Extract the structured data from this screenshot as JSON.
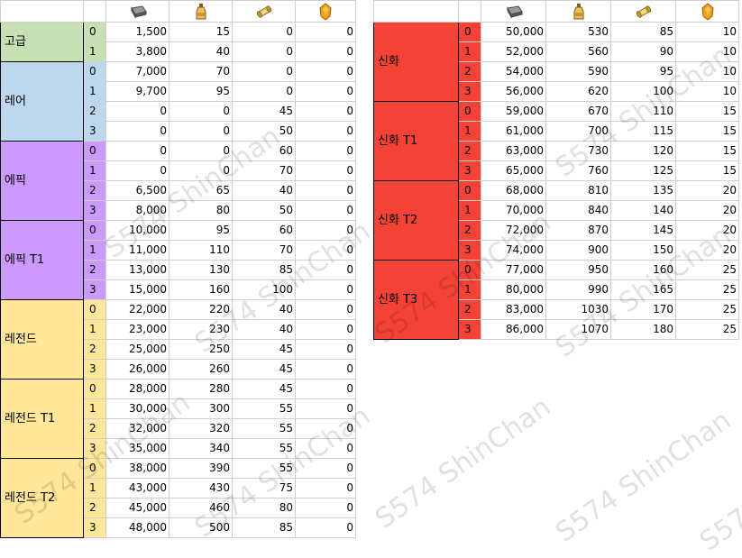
{
  "header": {
    "icons": [
      "iron-ingot-icon",
      "oil-bottle-icon",
      "scroll-icon",
      "amber-gem-icon"
    ]
  },
  "colors": {
    "고급": "#c6e0b4",
    "레어": "#bdd7ee",
    "에픽": "#cc99ff",
    "레전드": "#ffe699",
    "신화": "#f44336"
  },
  "left_table": [
    {
      "grade": "고급",
      "color": "#c6e0b4",
      "rows": [
        [
          "0",
          "1,500",
          "15",
          "0",
          "0"
        ],
        [
          "1",
          "3,800",
          "40",
          "0",
          "0"
        ]
      ]
    },
    {
      "grade": "레어",
      "color": "#bdd7ee",
      "rows": [
        [
          "0",
          "7,000",
          "70",
          "0",
          "0"
        ],
        [
          "1",
          "9,700",
          "95",
          "0",
          "0"
        ],
        [
          "2",
          "0",
          "0",
          "45",
          "0"
        ],
        [
          "3",
          "0",
          "0",
          "50",
          "0"
        ]
      ]
    },
    {
      "grade": "에픽",
      "color": "#cc99ff",
      "rows": [
        [
          "0",
          "0",
          "0",
          "60",
          "0"
        ],
        [
          "1",
          "0",
          "0",
          "70",
          "0"
        ],
        [
          "2",
          "6,500",
          "65",
          "40",
          "0"
        ],
        [
          "3",
          "8,000",
          "80",
          "50",
          "0"
        ]
      ]
    },
    {
      "grade": "에픽 T1",
      "color": "#cc99ff",
      "rows": [
        [
          "0",
          "10,000",
          "95",
          "60",
          "0"
        ],
        [
          "1",
          "11,000",
          "110",
          "70",
          "0"
        ],
        [
          "2",
          "13,000",
          "130",
          "85",
          "0"
        ],
        [
          "3",
          "15,000",
          "160",
          "100",
          "0"
        ]
      ]
    },
    {
      "grade": "레전드",
      "color": "#ffe699",
      "rows": [
        [
          "0",
          "22,000",
          "220",
          "40",
          "0"
        ],
        [
          "1",
          "23,000",
          "230",
          "40",
          "0"
        ],
        [
          "2",
          "25,000",
          "250",
          "45",
          "0"
        ],
        [
          "3",
          "26,000",
          "260",
          "45",
          "0"
        ]
      ]
    },
    {
      "grade": "레전드 T1",
      "color": "#ffe699",
      "rows": [
        [
          "0",
          "28,000",
          "280",
          "45",
          "0"
        ],
        [
          "1",
          "30,000",
          "300",
          "55",
          "0"
        ],
        [
          "2",
          "32,000",
          "320",
          "55",
          "0"
        ],
        [
          "3",
          "35,000",
          "340",
          "55",
          "0"
        ]
      ]
    },
    {
      "grade": "레전드 T2",
      "color": "#ffe699",
      "rows": [
        [
          "0",
          "38,000",
          "390",
          "55",
          "0"
        ],
        [
          "1",
          "43,000",
          "430",
          "75",
          "0"
        ],
        [
          "2",
          "45,000",
          "460",
          "80",
          "0"
        ],
        [
          "3",
          "48,000",
          "500",
          "85",
          "0"
        ]
      ]
    }
  ],
  "right_table": [
    {
      "grade": "신화",
      "color": "#f44336",
      "rows": [
        [
          "0",
          "50,000",
          "530",
          "85",
          "10"
        ],
        [
          "1",
          "52,000",
          "560",
          "90",
          "10"
        ],
        [
          "2",
          "54,000",
          "590",
          "95",
          "10"
        ],
        [
          "3",
          "56,000",
          "620",
          "100",
          "10"
        ]
      ]
    },
    {
      "grade": "신화 T1",
      "color": "#f44336",
      "rows": [
        [
          "0",
          "59,000",
          "670",
          "110",
          "15"
        ],
        [
          "1",
          "61,000",
          "700",
          "115",
          "15"
        ],
        [
          "2",
          "63,000",
          "730",
          "120",
          "15"
        ],
        [
          "3",
          "65,000",
          "760",
          "125",
          "15"
        ]
      ]
    },
    {
      "grade": "신화 T2",
      "color": "#f44336",
      "rows": [
        [
          "0",
          "68,000",
          "810",
          "135",
          "20"
        ],
        [
          "1",
          "70,000",
          "840",
          "140",
          "20"
        ],
        [
          "2",
          "72,000",
          "870",
          "145",
          "20"
        ],
        [
          "3",
          "74,000",
          "900",
          "150",
          "20"
        ]
      ]
    },
    {
      "grade": "신화 T3",
      "color": "#f44336",
      "rows": [
        [
          "0",
          "77,000",
          "950",
          "160",
          "25"
        ],
        [
          "1",
          "80,000",
          "990",
          "165",
          "25"
        ],
        [
          "2",
          "83,000",
          "1030",
          "170",
          "25"
        ],
        [
          "3",
          "86,000",
          "1070",
          "180",
          "25"
        ]
      ]
    }
  ],
  "watermark": "S574 ShinChan"
}
